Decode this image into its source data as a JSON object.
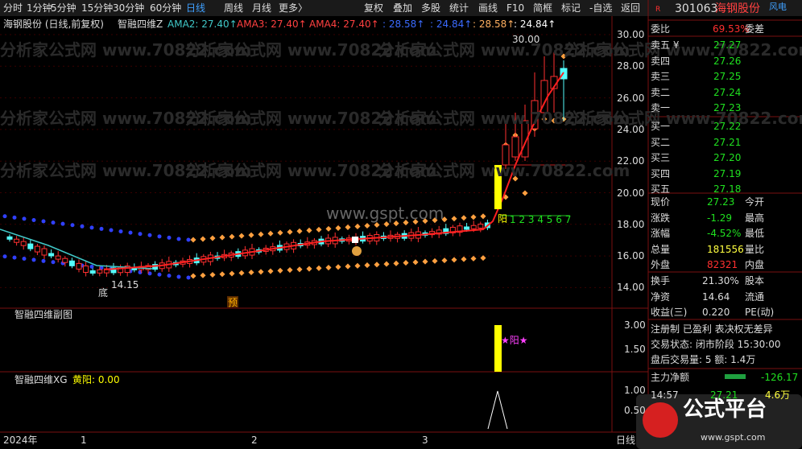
{
  "toolbar": {
    "periods": [
      "分时",
      "1分钟",
      "5分钟",
      "15分钟",
      "30分钟",
      "60分钟",
      "日线",
      "周线",
      "月线",
      "更多〉"
    ],
    "actions": [
      "复权",
      "叠加",
      "多股",
      "统计",
      "画线",
      "F10",
      "简框",
      "标记",
      "-自选",
      "返回"
    ]
  },
  "legend": {
    "stock": "海钢股份 (日线,前复权)",
    "indicator": "智融四维Z",
    "items": [
      "AMA2: 27.40↑",
      "AMA3: 27.40↑",
      "AMA4: 27.40↑",
      ": 28.58↑",
      ": 24.84↑",
      ": 28.58↑",
      ": 24.84↑"
    ]
  },
  "main_chart": {
    "yticks": [
      "30.00",
      "28.00",
      "26.00",
      "24.00",
      "22.00",
      "20.00",
      "18.00",
      "16.00",
      "14.00"
    ],
    "high_label": "30.00",
    "low_label": "14.15",
    "bottom_mark": "底",
    "pre_mark": "预",
    "yang": "阳",
    "count": "1 2 3 4 5 6 7",
    "watermark": "分析家公式网 www.70822.com",
    "site": "www.gspt.com"
  },
  "sub1": {
    "title": "智融四维副图",
    "yticks": [
      "3.00",
      "1.50"
    ],
    "label": "★阳★"
  },
  "sub2": {
    "title": "智融四维XG",
    "value": "黄阳: 0.00",
    "yticks": [
      "1.00",
      "0.50"
    ]
  },
  "date_axis": [
    "2024年",
    "1",
    "2",
    "3",
    "日线"
  ],
  "quote": {
    "badge": "R",
    "code": "301063",
    "name": "海钢股份",
    "sector": "风电",
    "ratio": {
      "label": "委比",
      "value": "69.53%",
      "label2": "委差"
    },
    "book": [
      {
        "label": "卖五 ¥",
        "price": "27.27"
      },
      {
        "label": "卖四",
        "price": "27.26"
      },
      {
        "label": "卖三",
        "price": "27.25"
      },
      {
        "label": "卖二",
        "price": "27.24"
      },
      {
        "label": "卖一",
        "price": "27.23"
      },
      {
        "label": "买一",
        "price": "27.22"
      },
      {
        "label": "买二",
        "price": "27.21"
      },
      {
        "label": "买三",
        "price": "27.20"
      },
      {
        "label": "买四",
        "price": "27.19"
      },
      {
        "label": "买五",
        "price": "27.18"
      }
    ],
    "stats": [
      {
        "label": "现价",
        "value": "27.23",
        "label2": "今开"
      },
      {
        "label": "涨跌",
        "value": "-1.29",
        "label2": "最高"
      },
      {
        "label": "涨幅",
        "value": "-4.52%",
        "label2": "最低"
      },
      {
        "label": "总量",
        "value": "181556",
        "label2": "量比"
      },
      {
        "label": "外盘",
        "value": "82321",
        "label2": "内盘"
      }
    ],
    "stats2": [
      {
        "label": "换手",
        "value": "21.30%",
        "label2": "股本"
      },
      {
        "label": "净资",
        "value": "14.64",
        "label2": "流通"
      },
      {
        "label": "收益(三)",
        "value": "0.220",
        "label2": "PE(动)"
      }
    ],
    "info": [
      "注册制 已盈利 表决权无差异",
      "交易状态: 闭市阶段 15:30:00",
      "盘后交易量: 5  额: 1.4万"
    ],
    "flow": {
      "label": "主力净额",
      "value": "-126.17"
    },
    "tick": {
      "time": "14:57",
      "price": "27.21",
      "volume": "4.6万"
    },
    "logo": {
      "title": "公式平台",
      "url": "www.gspt.com"
    }
  }
}
